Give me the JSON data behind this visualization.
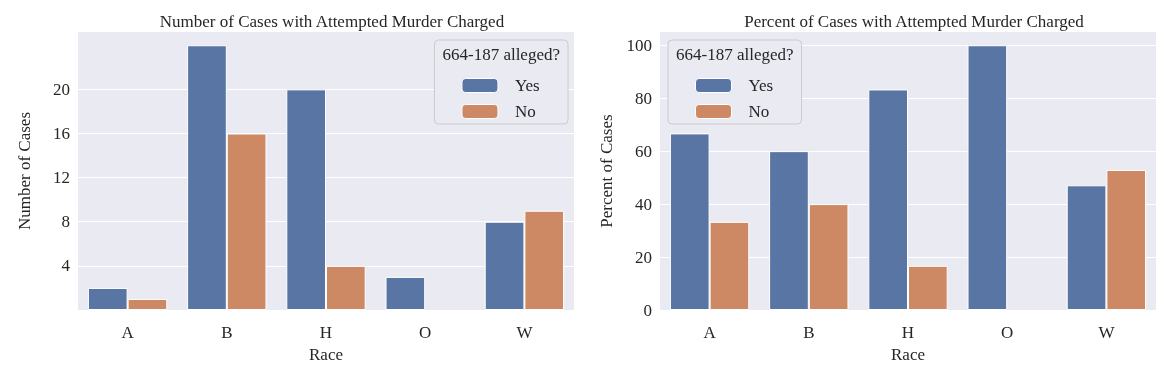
{
  "chart_data": [
    {
      "type": "bar",
      "title": "Number of Cases with Attempted Murder Charged",
      "xlabel": "Race",
      "ylabel": "Number of Cases",
      "legend_title": "664-187 alleged?",
      "categories": [
        "A",
        "B",
        "H",
        "O",
        "W"
      ],
      "series": [
        {
          "name": "Yes",
          "color": "#5875a4",
          "values": [
            2,
            24,
            20,
            3,
            8
          ]
        },
        {
          "name": "No",
          "color": "#cc8963",
          "values": [
            1,
            16,
            4,
            0,
            9
          ]
        }
      ],
      "ylim": [
        0,
        25.2
      ],
      "yticks": [
        4,
        8,
        12,
        16,
        20
      ],
      "grid": "y",
      "legend": "top right"
    },
    {
      "type": "bar",
      "title": "Percent of Cases with Attempted Murder Charged",
      "xlabel": "Race",
      "ylabel": "Percent of Cases",
      "legend_title": "664-187 alleged?",
      "categories": [
        "A",
        "B",
        "H",
        "O",
        "W"
      ],
      "series": [
        {
          "name": "Yes",
          "color": "#5875a4",
          "values": [
            66.7,
            60,
            83.3,
            100,
            47.1
          ]
        },
        {
          "name": "No",
          "color": "#cc8963",
          "values": [
            33.3,
            40,
            16.7,
            0,
            52.9
          ]
        }
      ],
      "ylim": [
        0,
        105
      ],
      "yticks": [
        0,
        20,
        40,
        60,
        80,
        100
      ],
      "grid": "y",
      "legend": "top left"
    }
  ]
}
